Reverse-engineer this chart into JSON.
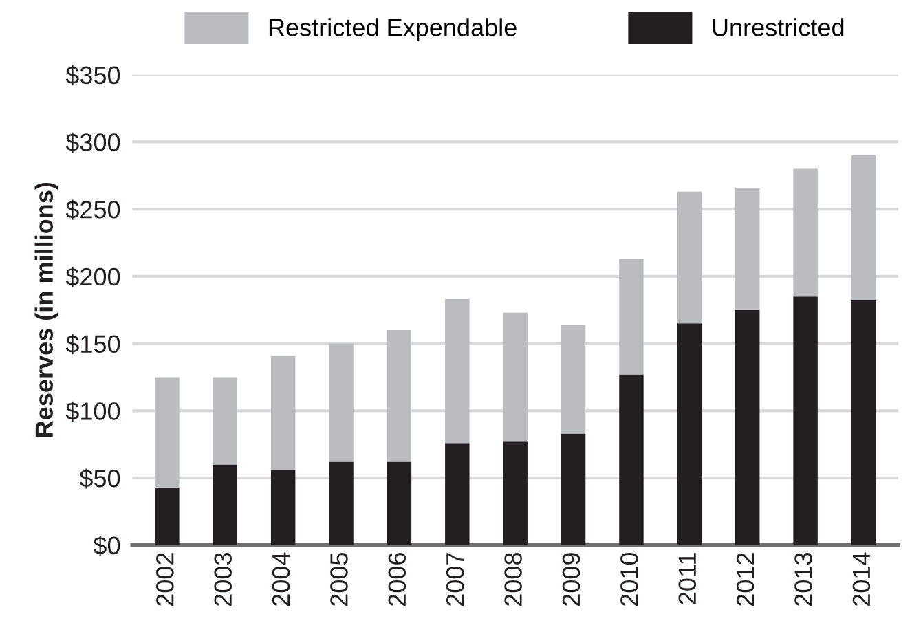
{
  "chart_data": {
    "type": "bar",
    "stacked": true,
    "ylabel": "Reserves (in millions)",
    "categories": [
      "2002",
      "2003",
      "2004",
      "2005",
      "2006",
      "2007",
      "2008",
      "2009",
      "2010",
      "2011",
      "2012",
      "2013",
      "2014"
    ],
    "series": [
      {
        "name": "Unrestricted",
        "color": "#231f20",
        "values": [
          43,
          60,
          56,
          62,
          62,
          76,
          77,
          83,
          127,
          165,
          175,
          185,
          182
        ]
      },
      {
        "name": "Restricted Expendable",
        "color": "#bbbcc0",
        "values": [
          82,
          65,
          85,
          88,
          98,
          107,
          96,
          81,
          86,
          98,
          91,
          95,
          108
        ]
      }
    ],
    "ylim": [
      0,
      350
    ],
    "yticks": [
      {
        "value": 0,
        "label": "$0"
      },
      {
        "value": 50,
        "label": "$50"
      },
      {
        "value": 100,
        "label": "$100"
      },
      {
        "value": 150,
        "label": "$150"
      },
      {
        "value": 200,
        "label": "$200"
      },
      {
        "value": 250,
        "label": "$250"
      },
      {
        "value": 300,
        "label": "$300"
      },
      {
        "value": 350,
        "label": "$350"
      }
    ],
    "grid": "y",
    "legend": "top"
  }
}
